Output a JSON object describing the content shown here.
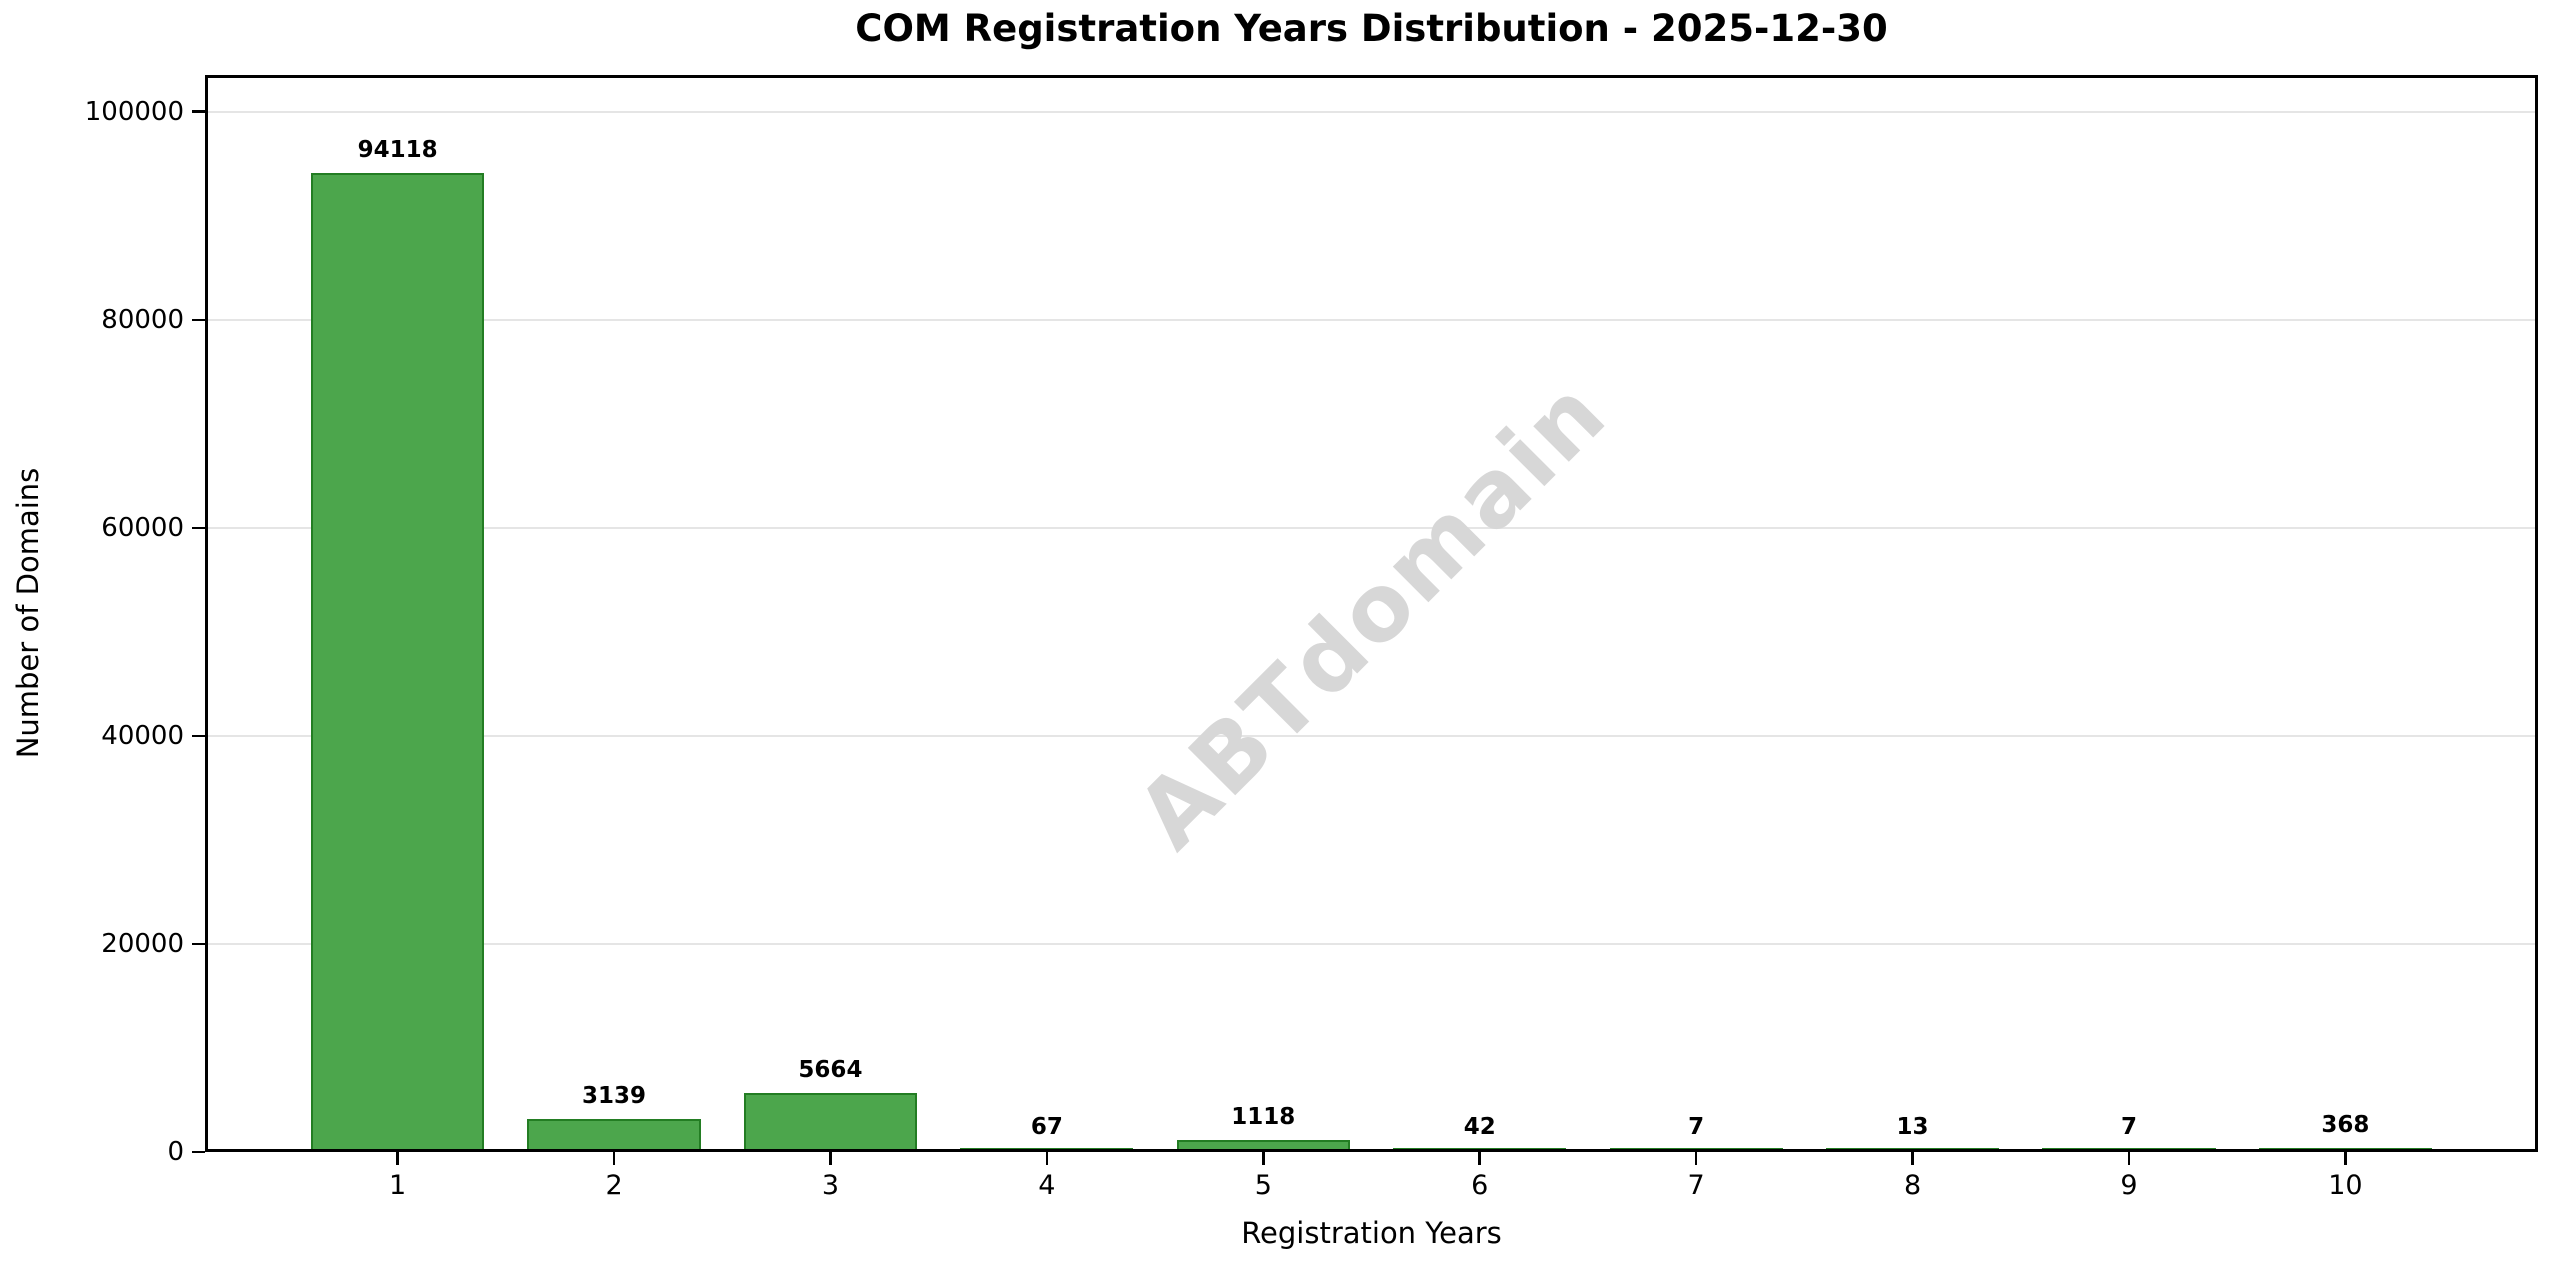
{
  "chart_data": {
    "type": "bar",
    "title": "COM Registration Years Distribution - 2025-12-30",
    "xlabel": "Registration Years",
    "ylabel": "Number of Domains",
    "categories": [
      "1",
      "2",
      "3",
      "4",
      "5",
      "6",
      "7",
      "8",
      "9",
      "10"
    ],
    "values": [
      94118,
      3139,
      5664,
      67,
      1118,
      42,
      7,
      13,
      7,
      368
    ],
    "value_labels": [
      "94118",
      "3139",
      "5664",
      "67",
      "1118",
      "42",
      "7",
      "13",
      "7",
      "368"
    ],
    "ylim": [
      0,
      103530
    ],
    "yticks": [
      0,
      20000,
      40000,
      60000,
      80000,
      100000
    ],
    "ytick_labels": [
      "0",
      "20000",
      "40000",
      "60000",
      "80000",
      "100000"
    ],
    "grid": "horizontal-only",
    "legend_position": "none",
    "bar_color": "#4ca64c",
    "bar_edge_color": "#237d23",
    "grid_color": "#e5e5e5",
    "watermark": {
      "text": "ABTdomain",
      "color": "#d7d7d7",
      "rotation_deg": -45
    }
  }
}
